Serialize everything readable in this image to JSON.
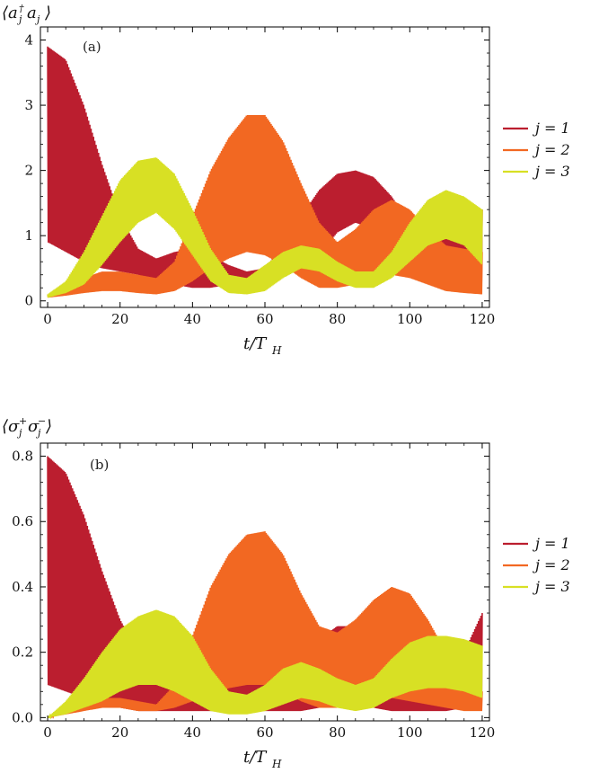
{
  "chart_data": [
    {
      "type": "line",
      "panel_tag": "(a)",
      "ylabel": "⟨a†ⱼ aⱼ⟩",
      "xlabel": "t/T_H",
      "xlim": [
        -2,
        122
      ],
      "ylim": [
        -0.1,
        4.2
      ],
      "xticks": [
        0,
        20,
        40,
        60,
        80,
        100,
        120
      ],
      "yticks": [
        0,
        1,
        2,
        3,
        4
      ],
      "grid": false,
      "legend_position": "right",
      "series": [
        {
          "name": "j = 1",
          "color": "#bb1e2f",
          "x": [
            0,
            5,
            10,
            15,
            20,
            25,
            30,
            35,
            40,
            45,
            50,
            55,
            60,
            65,
            70,
            75,
            80,
            85,
            90,
            95,
            100,
            105,
            110,
            115,
            120
          ],
          "upper": [
            3.9,
            3.7,
            3.0,
            2.1,
            1.3,
            0.8,
            0.65,
            0.75,
            0.8,
            0.7,
            0.55,
            0.45,
            0.5,
            0.85,
            1.3,
            1.7,
            1.95,
            2.0,
            1.9,
            1.6,
            1.2,
            1.0,
            1.1,
            1.3,
            1.4
          ],
          "lower": [
            0.9,
            0.75,
            0.6,
            0.5,
            0.45,
            0.4,
            0.3,
            0.25,
            0.2,
            0.2,
            0.25,
            0.3,
            0.35,
            0.4,
            0.5,
            0.7,
            1.05,
            1.2,
            1.1,
            0.8,
            0.55,
            0.4,
            0.35,
            0.3,
            0.3
          ]
        },
        {
          "name": "j = 2",
          "color": "#f26822",
          "x": [
            0,
            5,
            10,
            15,
            20,
            25,
            30,
            35,
            40,
            45,
            50,
            55,
            60,
            65,
            70,
            75,
            80,
            85,
            90,
            95,
            100,
            105,
            110,
            115,
            120
          ],
          "upper": [
            0.1,
            0.22,
            0.35,
            0.45,
            0.45,
            0.4,
            0.35,
            0.6,
            1.3,
            2.0,
            2.5,
            2.85,
            2.85,
            2.45,
            1.8,
            1.2,
            0.9,
            1.1,
            1.4,
            1.55,
            1.4,
            1.1,
            0.85,
            0.8,
            0.75
          ],
          "lower": [
            0.05,
            0.08,
            0.12,
            0.15,
            0.15,
            0.12,
            0.1,
            0.15,
            0.3,
            0.5,
            0.65,
            0.75,
            0.7,
            0.55,
            0.35,
            0.2,
            0.2,
            0.25,
            0.35,
            0.4,
            0.35,
            0.25,
            0.15,
            0.12,
            0.1
          ]
        },
        {
          "name": "j = 3",
          "color": "#d8e024",
          "x": [
            0,
            5,
            10,
            15,
            20,
            25,
            30,
            35,
            40,
            45,
            50,
            55,
            60,
            65,
            70,
            75,
            80,
            85,
            90,
            95,
            100,
            105,
            110,
            115,
            120
          ],
          "upper": [
            0.1,
            0.3,
            0.75,
            1.3,
            1.85,
            2.15,
            2.2,
            1.95,
            1.4,
            0.8,
            0.4,
            0.35,
            0.55,
            0.75,
            0.85,
            0.8,
            0.6,
            0.45,
            0.45,
            0.75,
            1.2,
            1.55,
            1.7,
            1.6,
            1.4
          ],
          "lower": [
            0.05,
            0.12,
            0.25,
            0.55,
            0.9,
            1.2,
            1.35,
            1.1,
            0.7,
            0.3,
            0.12,
            0.1,
            0.15,
            0.35,
            0.5,
            0.45,
            0.3,
            0.2,
            0.2,
            0.35,
            0.6,
            0.85,
            0.95,
            0.85,
            0.55
          ]
        }
      ]
    },
    {
      "type": "line",
      "panel_tag": "(b)",
      "ylabel": "⟨σ⁺ⱼ σ⁻ⱼ⟩",
      "xlabel": "t/T_H",
      "xlim": [
        -2,
        122
      ],
      "ylim": [
        -0.01,
        0.84
      ],
      "xticks": [
        0,
        20,
        40,
        60,
        80,
        100,
        120
      ],
      "yticks": [
        0.0,
        0.2,
        0.4,
        0.6,
        0.8
      ],
      "grid": false,
      "legend_position": "right",
      "series": [
        {
          "name": "j = 1",
          "color": "#bb1e2f",
          "x": [
            0,
            5,
            10,
            15,
            20,
            25,
            30,
            35,
            40,
            45,
            50,
            55,
            60,
            65,
            70,
            75,
            80,
            85,
            90,
            95,
            100,
            105,
            110,
            115,
            120
          ],
          "upper": [
            0.8,
            0.75,
            0.62,
            0.45,
            0.3,
            0.2,
            0.15,
            0.14,
            0.15,
            0.14,
            0.12,
            0.1,
            0.1,
            0.12,
            0.18,
            0.24,
            0.28,
            0.28,
            0.24,
            0.16,
            0.1,
            0.08,
            0.08,
            0.2,
            0.32
          ],
          "lower": [
            0.1,
            0.08,
            0.06,
            0.04,
            0.03,
            0.02,
            0.02,
            0.02,
            0.02,
            0.02,
            0.02,
            0.02,
            0.02,
            0.02,
            0.02,
            0.03,
            0.04,
            0.04,
            0.03,
            0.02,
            0.02,
            0.02,
            0.02,
            0.03,
            0.05
          ]
        },
        {
          "name": "j = 2",
          "color": "#f26822",
          "x": [
            0,
            5,
            10,
            15,
            20,
            25,
            30,
            35,
            40,
            45,
            50,
            55,
            60,
            65,
            70,
            75,
            80,
            85,
            90,
            95,
            100,
            105,
            110,
            115,
            120
          ],
          "upper": [
            0.0,
            0.03,
            0.05,
            0.06,
            0.06,
            0.05,
            0.04,
            0.1,
            0.25,
            0.4,
            0.5,
            0.56,
            0.57,
            0.5,
            0.38,
            0.28,
            0.26,
            0.3,
            0.36,
            0.4,
            0.38,
            0.3,
            0.2,
            0.12,
            0.08
          ],
          "lower": [
            0.0,
            0.01,
            0.02,
            0.03,
            0.03,
            0.02,
            0.02,
            0.03,
            0.05,
            0.07,
            0.09,
            0.1,
            0.1,
            0.08,
            0.05,
            0.03,
            0.03,
            0.04,
            0.05,
            0.06,
            0.05,
            0.04,
            0.03,
            0.02,
            0.02
          ]
        },
        {
          "name": "j = 3",
          "color": "#d8e024",
          "x": [
            0,
            5,
            10,
            15,
            20,
            25,
            30,
            35,
            40,
            45,
            50,
            55,
            60,
            65,
            70,
            75,
            80,
            85,
            90,
            95,
            100,
            105,
            110,
            115,
            120
          ],
          "upper": [
            0.0,
            0.05,
            0.12,
            0.2,
            0.27,
            0.31,
            0.33,
            0.31,
            0.25,
            0.15,
            0.08,
            0.07,
            0.1,
            0.15,
            0.17,
            0.15,
            0.12,
            0.1,
            0.12,
            0.18,
            0.23,
            0.25,
            0.25,
            0.24,
            0.22
          ],
          "lower": [
            0.0,
            0.01,
            0.03,
            0.05,
            0.08,
            0.1,
            0.1,
            0.08,
            0.05,
            0.02,
            0.01,
            0.01,
            0.02,
            0.04,
            0.06,
            0.05,
            0.03,
            0.02,
            0.03,
            0.06,
            0.08,
            0.09,
            0.09,
            0.08,
            0.06
          ]
        }
      ]
    }
  ]
}
